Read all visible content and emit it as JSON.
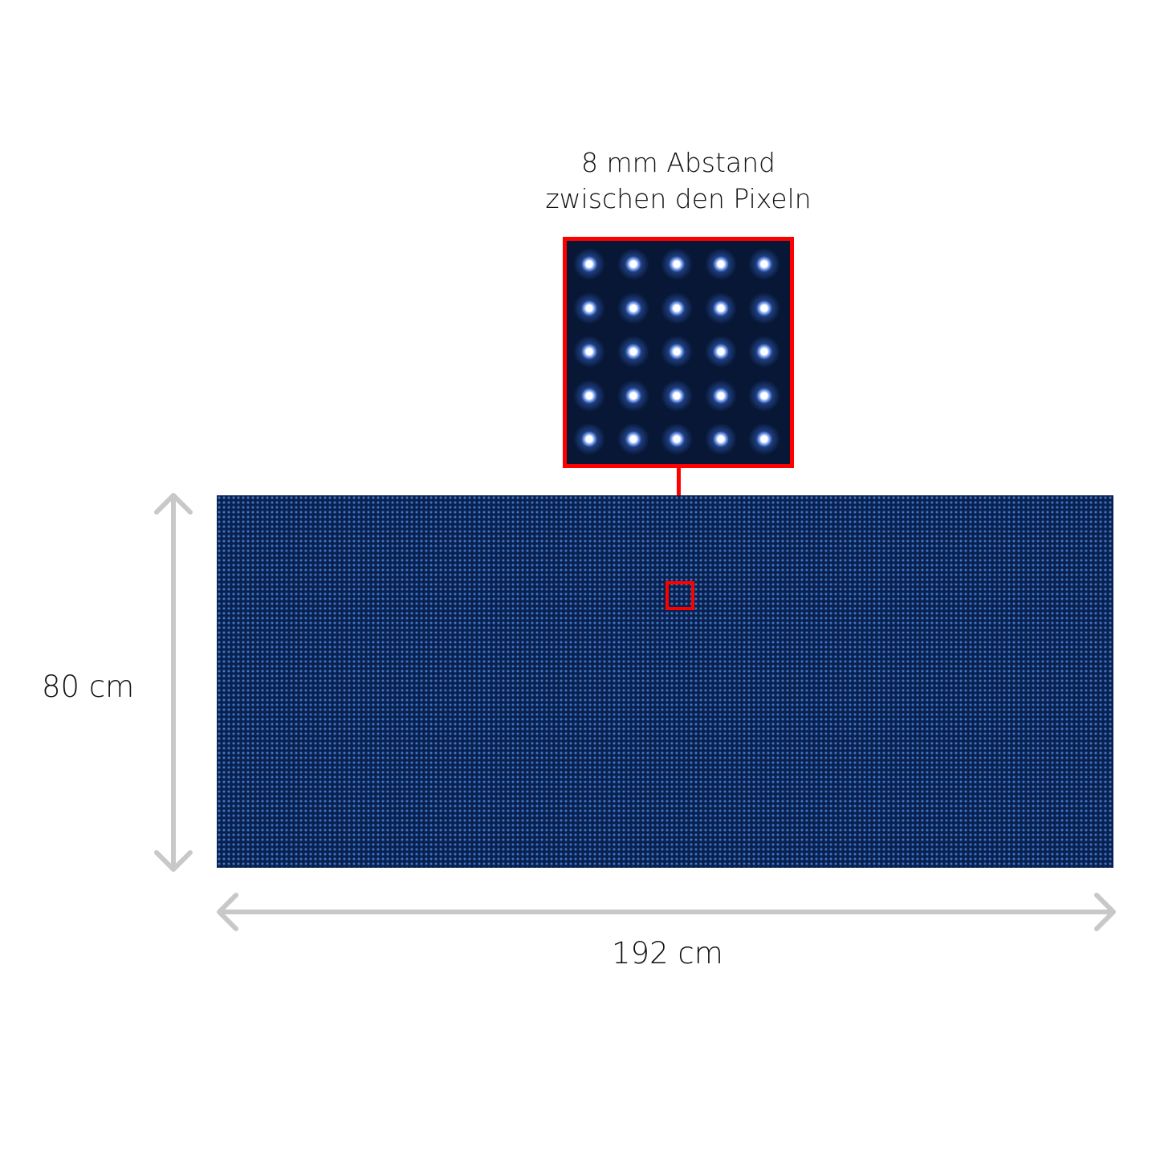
{
  "caption": {
    "line1": "8 mm Abstand",
    "line2": "zwischen den Pixeln"
  },
  "dimensions": {
    "height_label": "80 cm",
    "width_label": "192 cm"
  },
  "zoom_grid": {
    "rows": 5,
    "cols": 5
  },
  "colors": {
    "highlight": "#ff0000",
    "panel": "#0a2150",
    "zoom_background": "#071735",
    "arrow": "#c8c8c8"
  }
}
